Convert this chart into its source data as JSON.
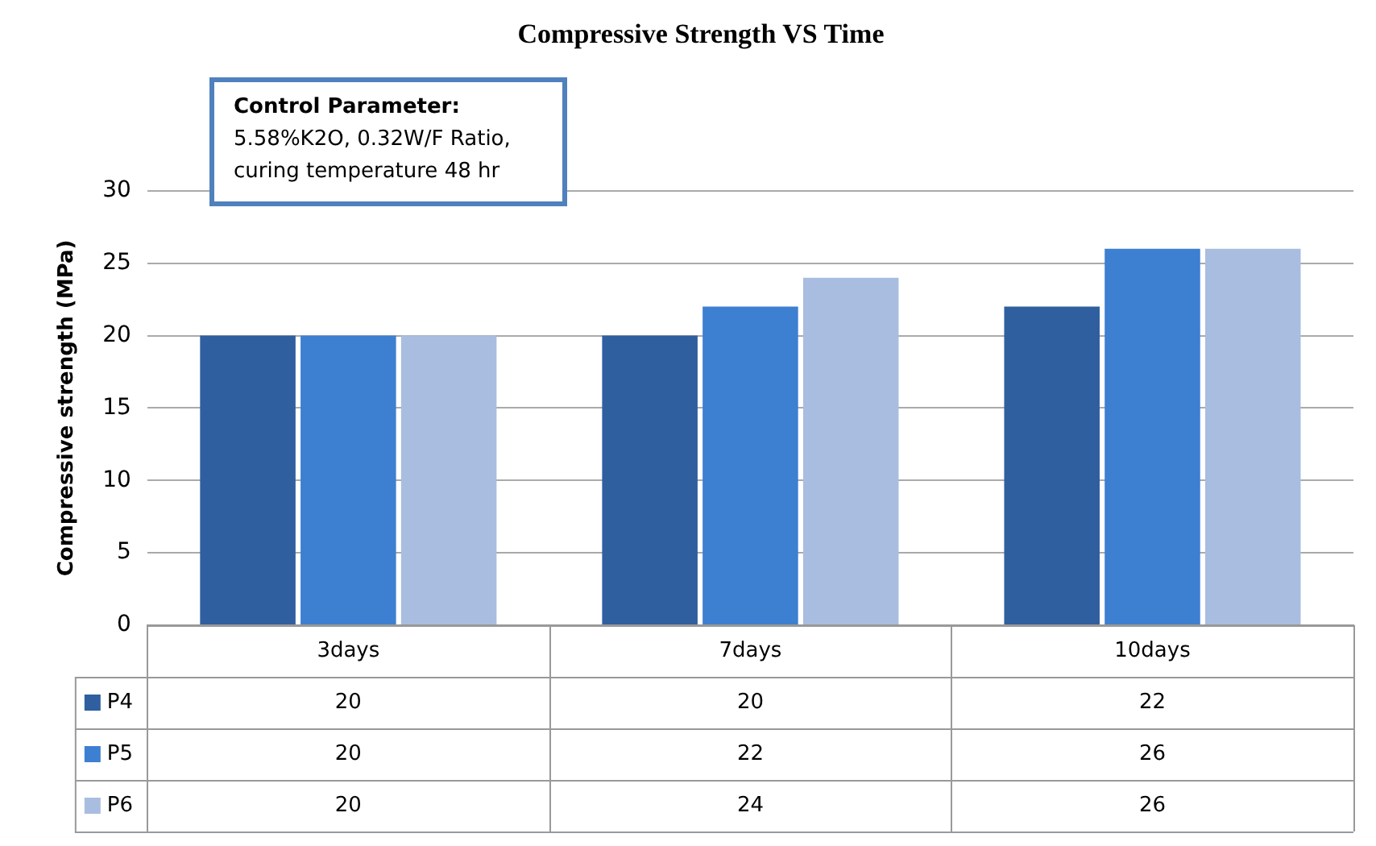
{
  "chart_data": {
    "type": "bar",
    "title": "Compressive Strength VS Time",
    "ylabel": "Compressive strength (MPa)",
    "annotations": [
      "Control Parameter:\n5.58%K2O, 0.32W/F Ratio,\ncuring temperature 48 hr"
    ],
    "categories": [
      "3days",
      "7days",
      "10days"
    ],
    "series": [
      {
        "name": "P4",
        "color": "#2f5f9e",
        "values": [
          20,
          20,
          22
        ]
      },
      {
        "name": "P5",
        "color": "#3d7fd1",
        "values": [
          20,
          22,
          26
        ]
      },
      {
        "name": "P6",
        "color": "#a9bde0",
        "values": [
          20,
          24,
          26
        ]
      }
    ],
    "ylim": [
      0,
      30
    ],
    "yticks": [
      0,
      5,
      10,
      15,
      20,
      25,
      30
    ],
    "grid": "y",
    "legend": "bottom",
    "data_labels": true
  }
}
